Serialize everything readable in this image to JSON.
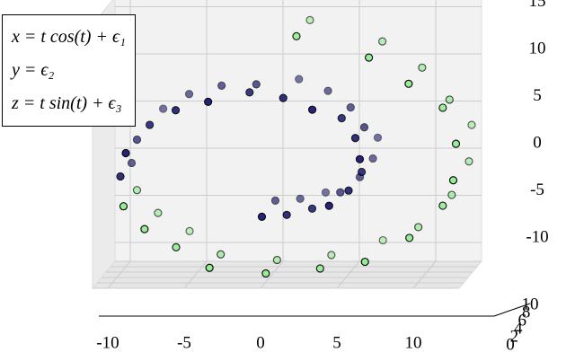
{
  "chart_data": {
    "type": "scatter3d",
    "legend_lines": [
      "x = t cos(t) + ϵ₁",
      "y = ϵ₂",
      "z = t sin(t) + ϵ₃"
    ],
    "series": [
      {
        "color": "#1c1c7a",
        "x": [
          -0.06,
          -0.06,
          1.42,
          1.42,
          2.94,
          2.94,
          4.34,
          4.34,
          5.47,
          5.47,
          6.18,
          6.18,
          6.35,
          6.35,
          5.91,
          5.91,
          4.87,
          4.87,
          3.24,
          3.24,
          1.19,
          1.19,
          -1.16,
          -1.16,
          -3.58,
          -3.58,
          -5.85,
          -5.85,
          -7.7,
          -7.7,
          -8.97,
          -8.97,
          -9.47,
          -9.47
        ],
        "y": [
          1,
          7,
          2,
          8,
          3,
          9,
          1,
          6,
          2,
          7,
          3,
          8,
          1,
          9,
          2,
          6,
          3,
          7,
          1,
          8,
          2,
          9,
          3,
          6,
          1,
          7,
          2,
          8,
          3,
          9,
          1,
          6,
          2,
          7
        ],
        "z": [
          -4.7,
          -4.7,
          -4.79,
          -4.79,
          -4.41,
          -4.41,
          -3.54,
          -3.54,
          -2.21,
          -2.21,
          -0.52,
          -0.52,
          1.4,
          1.4,
          3.36,
          3.36,
          5.18,
          5.18,
          6.65,
          6.65,
          7.61,
          7.61,
          7.92,
          7.92,
          7.49,
          7.49,
          6.31,
          6.31,
          4.47,
          4.47,
          2.05,
          2.05,
          -0.71,
          -0.71
        ]
      },
      {
        "color": "#90ee90",
        "x": [
          -9.12,
          -9.12,
          -7.89,
          -7.89,
          -5.97,
          -5.97,
          -3.49,
          -3.49,
          0.05,
          0.05,
          3.46,
          3.46,
          6.69,
          6.69,
          9.45,
          9.45,
          11.49,
          11.49,
          12.47,
          12.47,
          12.5,
          12.5,
          11.49,
          11.49,
          9.55,
          9.55,
          6.8,
          6.8,
          1.91,
          1.91
        ],
        "y": [
          1,
          7,
          2,
          8,
          3,
          9,
          1,
          6,
          2,
          7,
          3,
          8,
          1,
          9,
          2,
          6,
          3,
          7,
          1,
          8,
          2,
          9,
          3,
          6,
          1,
          7,
          2,
          8,
          3,
          9
        ],
        "z": [
          -3.59,
          -3.59,
          -6.3,
          -6.3,
          -8.51,
          -8.51,
          -10.12,
          -10.12,
          -11,
          -11,
          -10.76,
          -10.76,
          -9.48,
          -9.48,
          -7.23,
          -7.23,
          -4.1,
          -4.1,
          -0.83,
          -0.83,
          2.75,
          2.75,
          6.29,
          6.29,
          9.4,
          9.4,
          11.89,
          11.89,
          13.87,
          13.87
        ]
      }
    ],
    "xlim": [
      -11,
      13
    ],
    "ylim": [
      0,
      10
    ],
    "zlim": [
      -12,
      16
    ],
    "xticks": [
      -10,
      -5,
      0,
      5,
      10
    ],
    "yticks": [
      0,
      2,
      4,
      6,
      8,
      10
    ],
    "zticks": [
      -10,
      -5,
      0,
      5,
      10,
      15
    ]
  }
}
